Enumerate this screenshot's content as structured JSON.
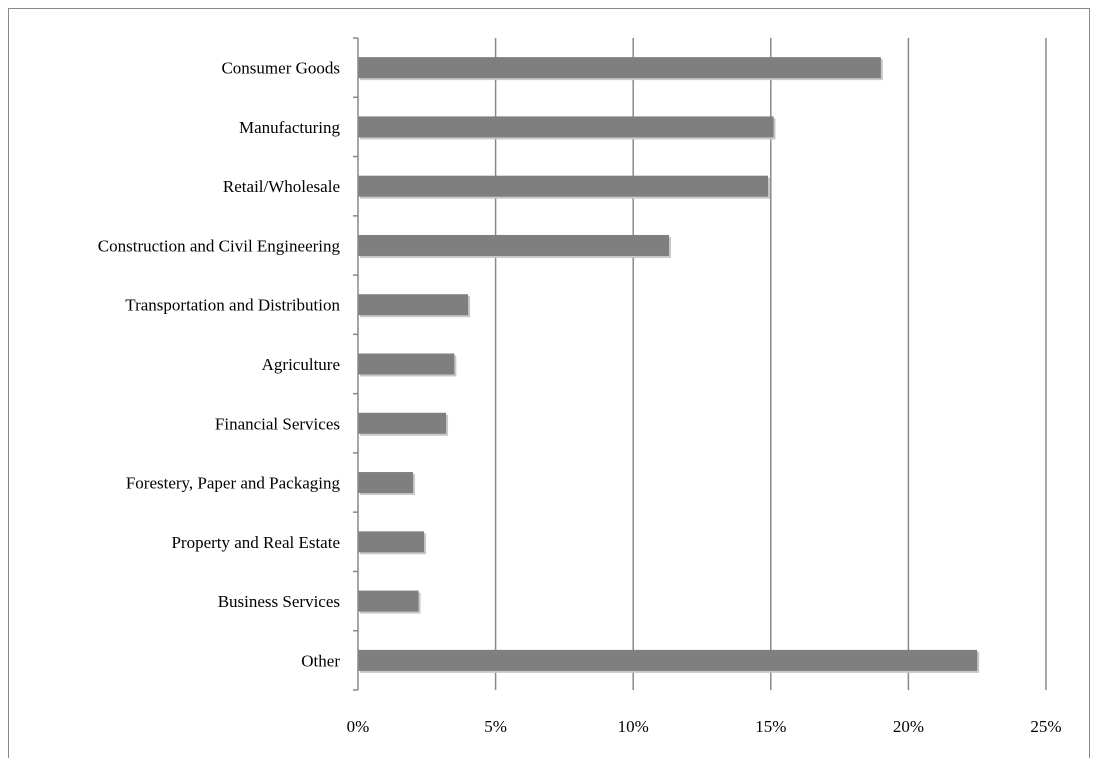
{
  "chart_data": {
    "type": "bar",
    "orientation": "horizontal",
    "categories": [
      "Consumer Goods",
      "Manufacturing",
      "Retail/Wholesale",
      "Construction and Civil Engineering",
      "Transportation and Distribution",
      "Agriculture",
      "Financial Services",
      "Forestery, Paper and Packaging",
      "Property and Real Estate",
      "Business Services",
      "Other"
    ],
    "values": [
      19.0,
      15.1,
      14.9,
      11.3,
      4.0,
      3.5,
      3.2,
      2.0,
      2.4,
      2.2,
      22.5
    ],
    "value_unit": "%",
    "xlim": [
      0,
      25
    ],
    "x_ticks": [
      "0%",
      "5%",
      "10%",
      "15%",
      "20%",
      "25%"
    ],
    "title": "",
    "xlabel": "",
    "ylabel": "",
    "grid": "vertical",
    "legend": "none",
    "bar_color": "#7f7f7f"
  }
}
